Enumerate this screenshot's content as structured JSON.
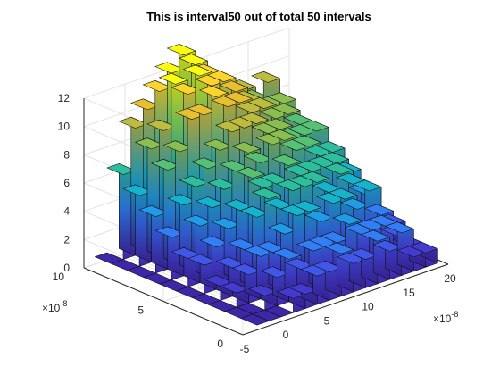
{
  "chart_data": {
    "type": "bar3d",
    "title": "This is interval50 out of total 50 intervals",
    "xlabel": "",
    "ylabel": "",
    "zlabel": "",
    "x_axis": {
      "ticks": [
        -5,
        0,
        5,
        10,
        15,
        20
      ],
      "tick_labels": [
        "-5",
        "0",
        "5",
        "10",
        "15",
        "20"
      ],
      "multiplier": "×10",
      "multiplier_exp": "-8",
      "lim": [
        -5,
        20
      ]
    },
    "y_axis": {
      "ticks": [
        0,
        5,
        10
      ],
      "tick_labels": [
        "0",
        "5",
        "10"
      ],
      "multiplier": "×10",
      "multiplier_exp": "-8",
      "lim": [
        0,
        10
      ]
    },
    "z_axis": {
      "ticks": [
        0,
        2,
        4,
        6,
        8,
        10,
        12
      ],
      "tick_labels": [
        "0",
        "2",
        "4",
        "6",
        "8",
        "10",
        "12"
      ],
      "lim": [
        0,
        12
      ]
    },
    "grid": true,
    "colormap": "parula",
    "x_range": [
      -2.5,
      19.5
    ],
    "y_range": [
      0.4,
      10.6
    ],
    "counts": [
      [
        0,
        0,
        0,
        1,
        1,
        2,
        2,
        3,
        2,
        2,
        3,
        2,
        3,
        1,
        1
      ],
      [
        0,
        0,
        1,
        2,
        3,
        2,
        3,
        3,
        3,
        4,
        3,
        3,
        3,
        2,
        1
      ],
      [
        0,
        1,
        2,
        3,
        3,
        4,
        5,
        5,
        4,
        5,
        5,
        4,
        5,
        3,
        2
      ],
      [
        0,
        1,
        2,
        3,
        5,
        6,
        5,
        6,
        6,
        6,
        5,
        6,
        5,
        4,
        2
      ],
      [
        0,
        2,
        3,
        4,
        5,
        7,
        6,
        6,
        7,
        6,
        6,
        6,
        6,
        5,
        3
      ],
      [
        0,
        2,
        4,
        5,
        6,
        7,
        8,
        7,
        8,
        8,
        7,
        7,
        6,
        6,
        4
      ],
      [
        0,
        3,
        5,
        6,
        7,
        8,
        9,
        9,
        9,
        8,
        8,
        7,
        7,
        7,
        5
      ],
      [
        0,
        4,
        7,
        8,
        10,
        10,
        11,
        10,
        10,
        9,
        9,
        8,
        8,
        7,
        6
      ],
      [
        0,
        5,
        8,
        9,
        12,
        11,
        12,
        11,
        11,
        10,
        9,
        8,
        8,
        8,
        6
      ],
      [
        0,
        6,
        9,
        10,
        11,
        12,
        13,
        12,
        11,
        10,
        8,
        9,
        8,
        9,
        7
      ]
    ]
  }
}
